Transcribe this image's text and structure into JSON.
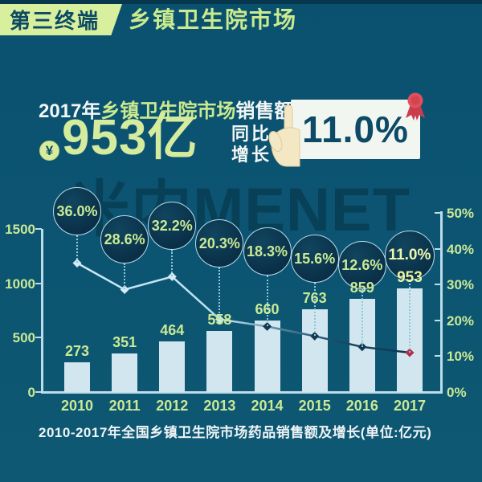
{
  "header": {
    "badge": "第三终端",
    "title": "乡镇卫生院市场"
  },
  "stat": {
    "prefix": "2017年",
    "highlight": "乡镇卫生院市场",
    "suffix": "销售额达到",
    "coin_symbol": "¥",
    "amount": "953亿",
    "yoy_line1": "同比",
    "yoy_line2": "增长",
    "yoy_value": "11.0%"
  },
  "watermark": "米内MENET",
  "caption": "2010-2017年全国乡镇卫生院市场药品销售额及增长(单位:亿元)",
  "chart_data": {
    "type": "bar+line",
    "title": "2010-2017年全国乡镇卫生院市场药品销售额及增长",
    "unit": "亿元",
    "categories": [
      "2010",
      "2011",
      "2012",
      "2013",
      "2014",
      "2015",
      "2016",
      "2017"
    ],
    "series": [
      {
        "name": "药品销售额(亿元)",
        "type": "bar",
        "values": [
          273,
          351,
          464,
          558,
          660,
          763,
          859,
          953
        ]
      },
      {
        "name": "同比增长(%)",
        "type": "line",
        "values": [
          36.0,
          28.6,
          32.2,
          20.3,
          18.3,
          15.6,
          12.6,
          11.0
        ],
        "labels": [
          "36.0%",
          "28.6%",
          "32.2%",
          "20.3%",
          "18.3%",
          "15.6%",
          "12.6%",
          "11.0%"
        ]
      }
    ],
    "left_axis": {
      "ticks": [
        0,
        500,
        1000,
        1500
      ],
      "range": [
        0,
        1500
      ]
    },
    "right_axis": {
      "ticks": [
        "0%",
        "10%",
        "20%",
        "30%",
        "40%",
        "50%"
      ],
      "range": [
        0,
        50
      ]
    },
    "legend": false,
    "grid": false
  },
  "colors": {
    "background": "#0b5370",
    "top_strip": "#07374d",
    "badge_bg": "#d8ef9e",
    "badge_text": "#0b4a63",
    "accent_green": "#cbe98f",
    "white_text": "#f2f6f5",
    "bar_fill": "#d2e6ef",
    "axis": "#bddcea",
    "bubble_stroke": "#b7dcee",
    "bubble_fill": "#0d3a52",
    "line_light": "#cdeaf5",
    "line_dark": "#103350",
    "marker_light": "#d3ecf6",
    "marker_dark": "#143953",
    "marker_red": "#b13048",
    "card_bg": "#f2f6f1",
    "card_text": "#0d4a66",
    "ribbon_red": "#dd4b57",
    "hand_fill": "#f4e7c4",
    "watermark_color": "rgba(6,48,66,0.55)"
  }
}
